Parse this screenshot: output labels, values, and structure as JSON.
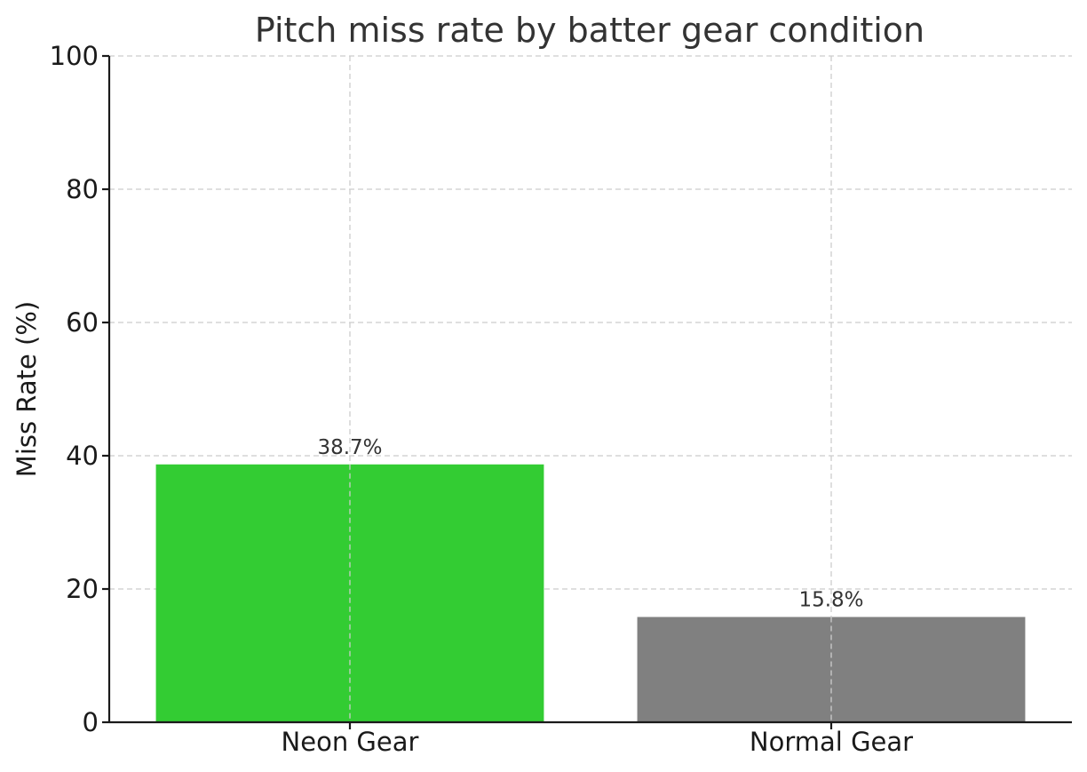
{
  "chart_data": {
    "type": "bar",
    "title": "Pitch miss rate by batter gear condition",
    "xlabel": "",
    "ylabel": "Miss Rate (%)",
    "categories": [
      "Neon Gear",
      "Normal Gear"
    ],
    "values": [
      38.7,
      15.8
    ],
    "value_labels": [
      "38.7%",
      "15.8%"
    ],
    "colors": [
      "#33cc33",
      "#808080"
    ],
    "ylim": [
      0,
      100
    ],
    "yticks": [
      0,
      20,
      40,
      60,
      80,
      100
    ],
    "ytick_labels": [
      "0",
      "20",
      "40",
      "60",
      "80",
      "100"
    ],
    "grid": true,
    "legend": "none"
  }
}
